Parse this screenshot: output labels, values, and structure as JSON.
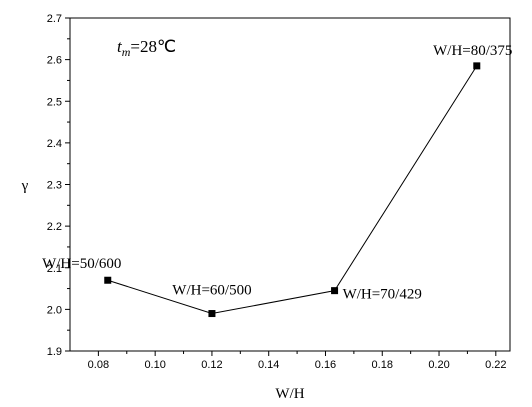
{
  "chart_data": {
    "type": "line",
    "title": "",
    "xlabel": "W/H",
    "ylabel": "γ",
    "xlim": [
      0.07,
      0.225
    ],
    "ylim": [
      1.9,
      2.7
    ],
    "xticks": [
      0.08,
      0.1,
      0.12,
      0.14,
      0.16,
      0.18,
      0.2,
      0.22
    ],
    "xtick_labels": [
      "0.08",
      "0.10",
      "0.12",
      "0.14",
      "0.16",
      "0.18",
      "0.20",
      "0.22"
    ],
    "yticks": [
      1.9,
      2.0,
      2.1,
      2.2,
      2.3,
      2.4,
      2.5,
      2.6,
      2.7
    ],
    "ytick_labels": [
      "1.9",
      "2.0",
      "2.1",
      "2.2",
      "2.3",
      "2.4",
      "2.5",
      "2.6",
      "2.7"
    ],
    "grid": false,
    "series": [
      {
        "x": [
          0.0833,
          0.12,
          0.1632,
          0.2133
        ],
        "y": [
          2.07,
          1.99,
          2.045,
          2.585
        ],
        "labels": [
          "W/H=50/600",
          "W/H=60/500",
          "W/H=70/429",
          "W/H=80/375"
        ],
        "color": "#000000",
        "marker": "square"
      }
    ],
    "annotation": {
      "t_symbol": "t",
      "m_subscript": "m",
      "text": "=28℃"
    }
  }
}
